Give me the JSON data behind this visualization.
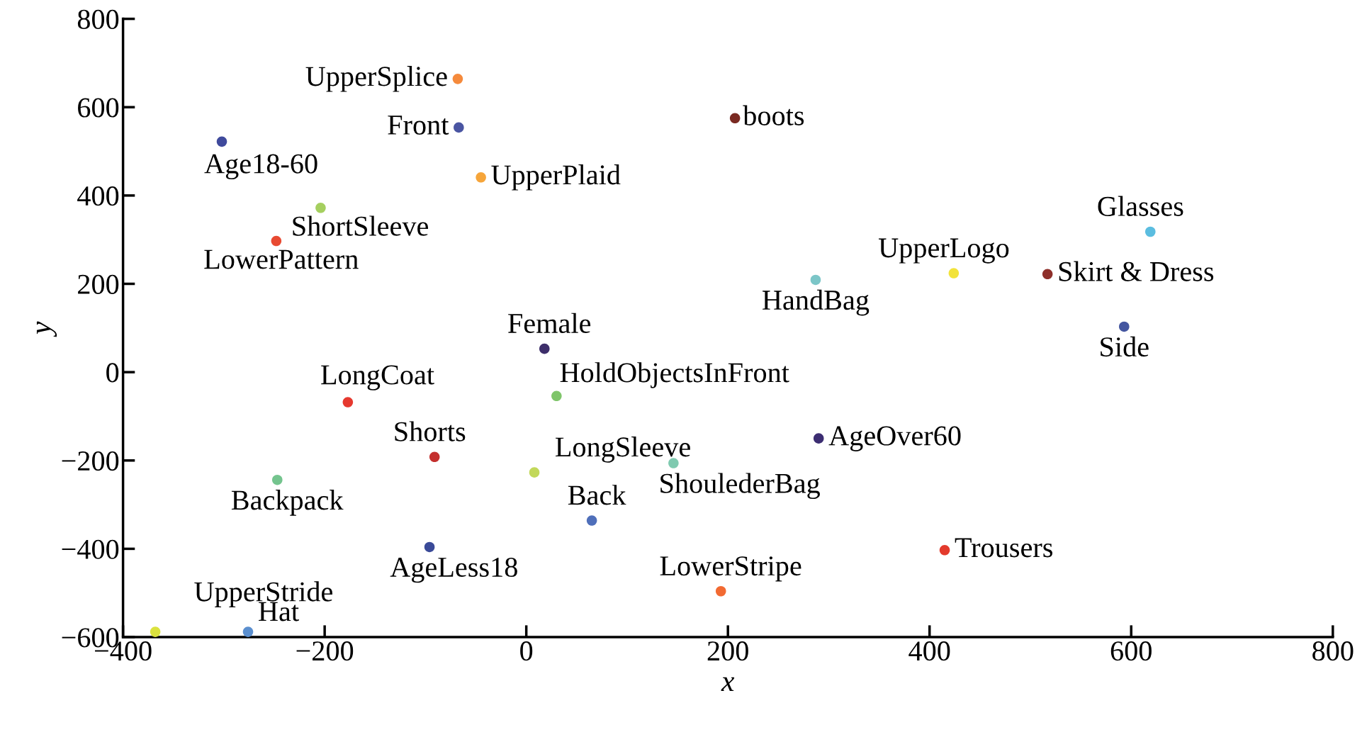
{
  "chart_data": {
    "type": "scatter",
    "xlabel": "x",
    "ylabel": "y",
    "xlim": [
      -400,
      800
    ],
    "ylim": [
      -600,
      800
    ],
    "xticks": [
      -400,
      -200,
      0,
      200,
      400,
      600,
      800
    ],
    "yticks": [
      -600,
      -400,
      -200,
      0,
      200,
      400,
      600,
      800
    ],
    "grid": false,
    "legend": false,
    "marker": "circle",
    "series": [
      {
        "name": "UpperSplice",
        "color": "#f58a3c",
        "x": [
          -68
        ],
        "values": [
          664
        ]
      },
      {
        "name": "Front",
        "color": "#4a55a2",
        "x": [
          -67
        ],
        "values": [
          554
        ]
      },
      {
        "name": "Age18-60",
        "color": "#3f4a9c",
        "x": [
          -302
        ],
        "values": [
          522
        ]
      },
      {
        "name": "boots",
        "color": "#7a2a22",
        "x": [
          207
        ],
        "values": [
          575
        ]
      },
      {
        "name": "UpperPlaid",
        "color": "#f6a53a",
        "x": [
          -45
        ],
        "values": [
          441
        ]
      },
      {
        "name": "ShortSleeve",
        "color": "#a5cf5f",
        "x": [
          -204
        ],
        "values": [
          372
        ]
      },
      {
        "name": "LowerPattern",
        "color": "#e84a32",
        "x": [
          -248
        ],
        "values": [
          297
        ]
      },
      {
        "name": "Glasses",
        "color": "#5bbde0",
        "x": [
          619
        ],
        "values": [
          318
        ]
      },
      {
        "name": "UpperLogo",
        "color": "#f2e33a",
        "x": [
          424
        ],
        "values": [
          224
        ]
      },
      {
        "name": "Skirt & Dress",
        "color": "#8e2f2a",
        "x": [
          517
        ],
        "values": [
          222
        ]
      },
      {
        "name": "HandBag",
        "color": "#7cc6c8",
        "x": [
          287
        ],
        "values": [
          209
        ]
      },
      {
        "name": "Side",
        "color": "#4456a0",
        "x": [
          593
        ],
        "values": [
          103
        ]
      },
      {
        "name": "Female",
        "color": "#3d2e6a",
        "x": [
          18
        ],
        "values": [
          53
        ]
      },
      {
        "name": "HoldObjectsInFront",
        "color": "#7fc56a",
        "x": [
          30
        ],
        "values": [
          -54
        ]
      },
      {
        "name": "LongCoat",
        "color": "#e6392f",
        "x": [
          -177
        ],
        "values": [
          -68
        ]
      },
      {
        "name": "AgeOver60",
        "color": "#3c2d72",
        "x": [
          290
        ],
        "values": [
          -150
        ]
      },
      {
        "name": "Shorts",
        "color": "#c4302e",
        "x": [
          -91
        ],
        "values": [
          -192
        ]
      },
      {
        "name": "ShoulederBag",
        "color": "#7fcab0",
        "x": [
          146
        ],
        "values": [
          -206
        ]
      },
      {
        "name": "LongSleeve",
        "color": "#c2d85a",
        "x": [
          8
        ],
        "values": [
          -227
        ]
      },
      {
        "name": "Backpack",
        "color": "#74c48e",
        "x": [
          -247
        ],
        "values": [
          -244
        ]
      },
      {
        "name": "Back",
        "color": "#4f6fba",
        "x": [
          65
        ],
        "values": [
          -336
        ]
      },
      {
        "name": "AgeLess18",
        "color": "#3a4a98",
        "x": [
          -96
        ],
        "values": [
          -396
        ]
      },
      {
        "name": "Trousers",
        "color": "#e33a2c",
        "x": [
          415
        ],
        "values": [
          -403
        ]
      },
      {
        "name": "LowerStripe",
        "color": "#f26a32",
        "x": [
          193
        ],
        "values": [
          -496
        ]
      },
      {
        "name": "UpperStride",
        "color": "#dbe23e",
        "x": [
          -368
        ],
        "values": [
          -588
        ]
      },
      {
        "name": "Hat",
        "color": "#5b8fcf",
        "x": [
          -276
        ],
        "values": [
          -588
        ]
      }
    ]
  }
}
